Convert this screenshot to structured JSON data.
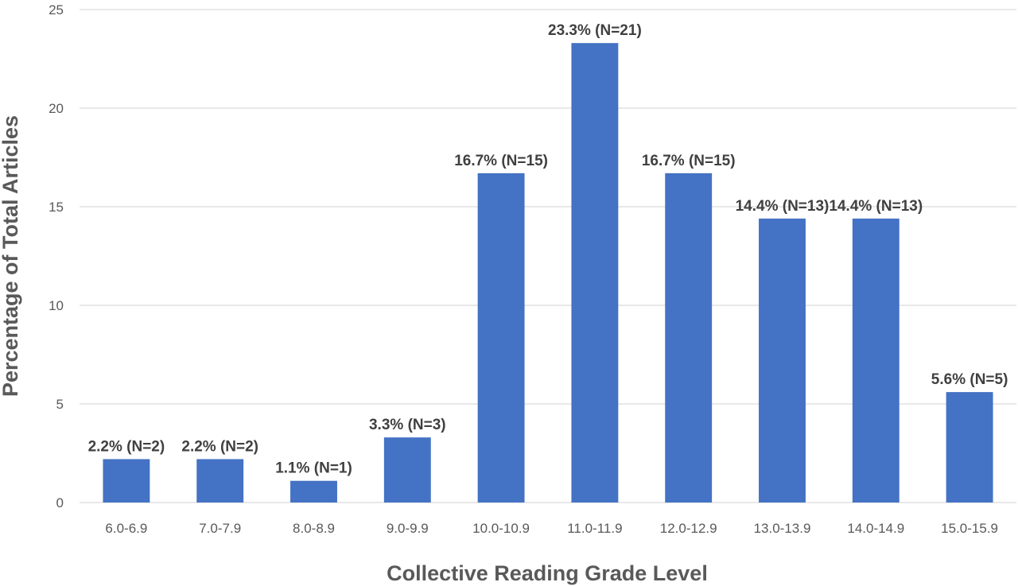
{
  "chart_data": {
    "type": "bar",
    "title": "",
    "xlabel": "Collective Reading Grade Level",
    "ylabel": "Percentage of Total Articles",
    "ylim": [
      0,
      25
    ],
    "yticks": [
      0,
      5,
      10,
      15,
      20,
      25
    ],
    "grid": true,
    "legend": "none",
    "bar_color": "#4472C4",
    "categories": [
      "6.0-6.9",
      "7.0-7.9",
      "8.0-8.9",
      "9.0-9.9",
      "10.0-10.9",
      "11.0-11.9",
      "12.0-12.9",
      "13.0-13.9",
      "14.0-14.9",
      "15.0-15.9"
    ],
    "values": [
      2.2,
      2.2,
      1.1,
      3.3,
      16.7,
      23.3,
      16.7,
      14.4,
      14.4,
      5.6
    ],
    "data_labels": [
      "2.2% (N=2)",
      "2.2% (N=2)",
      "1.1% (N=1)",
      "3.3% (N=3)",
      "16.7% (N=15)",
      "23.3% (N=21)",
      "16.7% (N=15)",
      "14.4% (N=13)",
      "14.4% (N=13)",
      "5.6% (N=5)"
    ]
  }
}
